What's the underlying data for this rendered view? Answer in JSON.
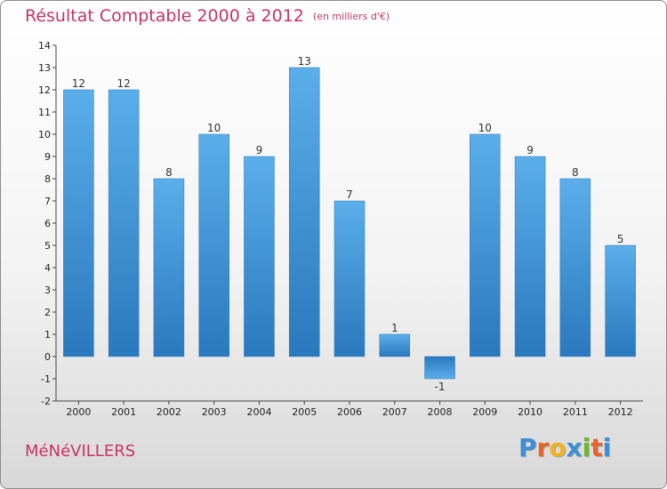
{
  "header": {
    "title": "Résultat Comptable 2000 à 2012",
    "subtitle": "(en milliers d'€)"
  },
  "footer": {
    "commune": "MéNéVILLERS",
    "logo_letters": [
      "P",
      "r",
      "o",
      "x",
      "i",
      "t",
      "i"
    ],
    "logo_colors": [
      "#3c8fd6",
      "#e8622a",
      "#f0b21c",
      "#3c8fd6",
      "#6bb82e",
      "#e8622a",
      "#3c8fd6"
    ]
  },
  "chart_data": {
    "type": "bar",
    "title": "Résultat Comptable 2000 à 2012",
    "subtitle": "(en milliers d'€)",
    "categories": [
      "2000",
      "2001",
      "2002",
      "2003",
      "2004",
      "2005",
      "2006",
      "2007",
      "2008",
      "2009",
      "2010",
      "2011",
      "2012"
    ],
    "values": [
      12,
      12,
      8,
      10,
      9,
      13,
      7,
      1,
      -1,
      10,
      9,
      8,
      5
    ],
    "ylim": [
      -2,
      14
    ],
    "yticks": [
      "14",
      "13",
      "12",
      "11",
      "10",
      "9",
      "8",
      "7",
      "6",
      "5",
      "4",
      "3",
      "2",
      "1",
      "0",
      "-1",
      "-2"
    ],
    "grid": false,
    "bar_color": "#3d94d6",
    "xlabel": "",
    "ylabel": ""
  }
}
